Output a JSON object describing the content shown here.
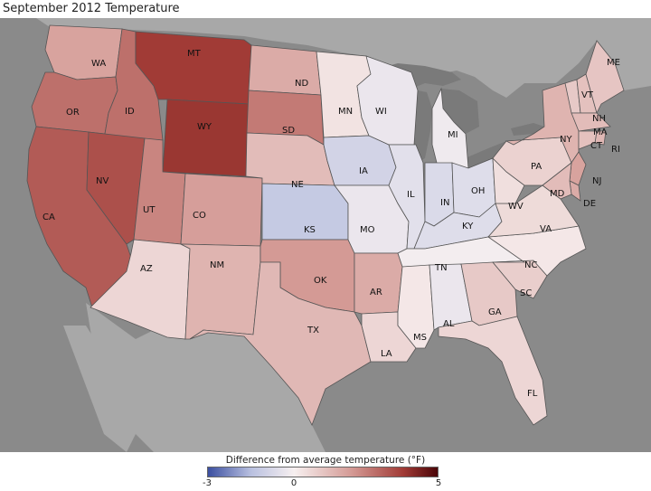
{
  "title": "September 2012 Temperature",
  "colors": {
    "ocean": "#8a8a8a",
    "land_other": "#a8a8a8",
    "lakes": "#7a7a7a",
    "border": "#555555"
  },
  "legend": {
    "title": "Difference from average temperature (°F)",
    "min": -3,
    "zero": 0,
    "max": 5,
    "tick_min": "-3",
    "tick_zero": "0",
    "tick_max": "5",
    "colors": {
      "cold": "#3b4fa0",
      "mid_cold": "#b9c0e0",
      "neutral": "#f7f0f0",
      "mid_warm": "#d49a95",
      "warm": "#a13b36",
      "hot": "#4a0508"
    }
  },
  "states": [
    {
      "abbr": "WA",
      "anomaly": 1.8
    },
    {
      "abbr": "OR",
      "anomaly": 2.8
    },
    {
      "abbr": "CA",
      "anomaly": 3.2
    },
    {
      "abbr": "ID",
      "anomaly": 2.8
    },
    {
      "abbr": "NV",
      "anomaly": 3.4
    },
    {
      "abbr": "MT",
      "anomaly": 3.8
    },
    {
      "abbr": "WY",
      "anomaly": 3.9
    },
    {
      "abbr": "UT",
      "anomaly": 2.4
    },
    {
      "abbr": "AZ",
      "anomaly": 0.6
    },
    {
      "abbr": "CO",
      "anomaly": 1.9
    },
    {
      "abbr": "NM",
      "anomaly": 1.4
    },
    {
      "abbr": "ND",
      "anomaly": 1.6
    },
    {
      "abbr": "SD",
      "anomaly": 2.6
    },
    {
      "abbr": "NE",
      "anomaly": 1.2
    },
    {
      "abbr": "KS",
      "anomaly": -1.2
    },
    {
      "abbr": "OK",
      "anomaly": 2.0
    },
    {
      "abbr": "TX",
      "anomaly": 1.3
    },
    {
      "abbr": "MN",
      "anomaly": 0.3
    },
    {
      "abbr": "IA",
      "anomaly": -0.9
    },
    {
      "abbr": "MO",
      "anomaly": -0.3
    },
    {
      "abbr": "AR",
      "anomaly": 1.6
    },
    {
      "abbr": "LA",
      "anomaly": 0.6
    },
    {
      "abbr": "WI",
      "anomaly": -0.3
    },
    {
      "abbr": "IL",
      "anomaly": -0.5
    },
    {
      "abbr": "MI",
      "anomaly": -0.2
    },
    {
      "abbr": "IN",
      "anomaly": -0.7
    },
    {
      "abbr": "OH",
      "anomaly": -0.6
    },
    {
      "abbr": "KY",
      "anomaly": -0.6
    },
    {
      "abbr": "TN",
      "anomaly": -0.1
    },
    {
      "abbr": "MS",
      "anomaly": 0.2
    },
    {
      "abbr": "AL",
      "anomaly": -0.3
    },
    {
      "abbr": "GA",
      "anomaly": 0.9
    },
    {
      "abbr": "FL",
      "anomaly": 0.6
    },
    {
      "abbr": "SC",
      "anomaly": 0.8
    },
    {
      "abbr": "NC",
      "anomaly": 0.2
    },
    {
      "abbr": "VA",
      "anomaly": 0.5
    },
    {
      "abbr": "WV",
      "anomaly": 0.4
    },
    {
      "abbr": "PA",
      "anomaly": 0.7
    },
    {
      "abbr": "NY",
      "anomaly": 1.4
    },
    {
      "abbr": "VT",
      "anomaly": 0.9
    },
    {
      "abbr": "NH",
      "anomaly": 1.1
    },
    {
      "abbr": "ME",
      "anomaly": 1.0
    },
    {
      "abbr": "MA",
      "anomaly": 1.2
    },
    {
      "abbr": "RI",
      "anomaly": 1.3
    },
    {
      "abbr": "CT",
      "anomaly": 1.1
    },
    {
      "abbr": "NJ",
      "anomaly": 1.8
    },
    {
      "abbr": "DE",
      "anomaly": 1.6
    },
    {
      "abbr": "MD",
      "anomaly": 1.2
    }
  ]
}
